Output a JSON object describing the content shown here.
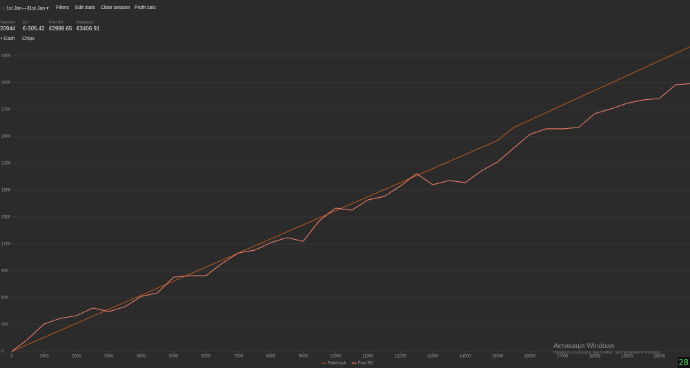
{
  "toolbar": {
    "date_range": "1st Jan—31st Jan",
    "items": [
      "Filters",
      "Edit stats",
      "Clear session",
      "Profit calc"
    ]
  },
  "stats": [
    {
      "label": "Tourneys",
      "value": "20944"
    },
    {
      "label": "EV",
      "value": "€-305.42"
    },
    {
      "label": "Post RB",
      "value": "€2988.65"
    },
    {
      "label": "Rakeback",
      "value": "€3406.91"
    }
  ],
  "tabs": [
    "Cash",
    "Chips"
  ],
  "chart_data": {
    "type": "line",
    "x": [
      0,
      500,
      1000,
      1500,
      2000,
      2500,
      3000,
      3500,
      4000,
      4500,
      5000,
      5500,
      6000,
      6500,
      7000,
      7500,
      8000,
      8500,
      9000,
      9500,
      10000,
      10500,
      11000,
      11500,
      12000,
      12500,
      13000,
      13500,
      14000,
      14500,
      15000,
      15500,
      16000,
      16500,
      17000,
      17500,
      18000,
      18500,
      19000,
      19500,
      20000,
      20500,
      20944
    ],
    "series": [
      {
        "name": "Rakeback",
        "color": "#b5581f",
        "values": [
          0,
          79,
          157,
          236,
          314,
          393,
          471,
          550,
          628,
          707,
          785,
          864,
          942,
          1021,
          1099,
          1178,
          1256,
          1335,
          1413,
          1492,
          1570,
          1649,
          1727,
          1806,
          1884,
          1963,
          2041,
          2120,
          2198,
          2277,
          2355,
          2500,
          2583,
          2665,
          2748,
          2831,
          2914,
          2996,
          3079,
          3162,
          3244,
          3327,
          3400
        ]
      },
      {
        "name": "Post RB",
        "color": "#f07f6c",
        "values": [
          0,
          138,
          308,
          369,
          400,
          485,
          446,
          500,
          615,
          654,
          830,
          846,
          846,
          985,
          1100,
          1130,
          1215,
          1270,
          1230,
          1460,
          1600,
          1577,
          1692,
          1730,
          1846,
          1985,
          1861,
          1908,
          1885,
          2015,
          2115,
          2270,
          2423,
          2485,
          2485,
          2500,
          2654,
          2708,
          2770,
          2808,
          2823,
          2977,
          2989
        ]
      }
    ],
    "xlim": [
      0,
      20944
    ],
    "ylim": [
      0,
      3400
    ],
    "xticks": [
      0,
      1000,
      2000,
      3000,
      4000,
      5000,
      6000,
      7000,
      8000,
      9000,
      10000,
      11000,
      12000,
      13000,
      14000,
      15000,
      16000,
      17000,
      18000,
      19000,
      20000
    ],
    "yticks": [
      0,
      300,
      600,
      900,
      1200,
      1500,
      1800,
      2100,
      2400,
      2700,
      3000,
      3300
    ],
    "grid": true
  },
  "watermark": {
    "title": "Активація Windows",
    "text": "Перейдіть до розділу \"Настройки\", щоб активувати Windows."
  },
  "badge": "28"
}
